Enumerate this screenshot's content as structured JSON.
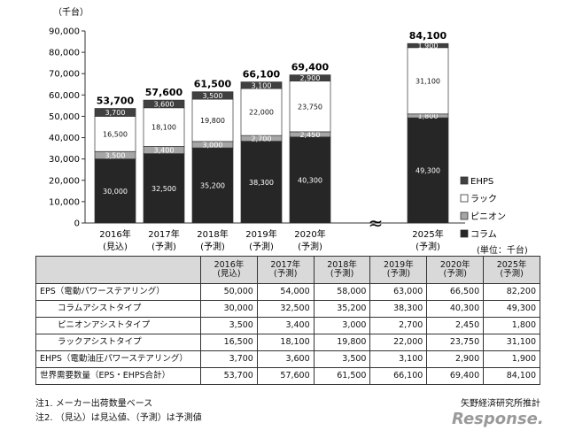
{
  "chart_data": {
    "type": "bar",
    "stacked": true,
    "ylabel": "（千台）",
    "ylim": [
      0,
      90000
    ],
    "yticks": [
      0,
      10000,
      20000,
      30000,
      40000,
      50000,
      60000,
      70000,
      80000,
      90000
    ],
    "ytick_labels": [
      "0",
      "10,000",
      "20,000",
      "30,000",
      "40,000",
      "50,000",
      "60,000",
      "70,000",
      "80,000",
      "90,000"
    ],
    "categories": [
      {
        "year": "2016年",
        "status": "(見込)"
      },
      {
        "year": "2017年",
        "status": "(予測)"
      },
      {
        "year": "2018年",
        "status": "(予測)"
      },
      {
        "year": "2019年",
        "status": "(予測)"
      },
      {
        "year": "2020年",
        "status": "(予測)"
      },
      {
        "year": "2025年",
        "status": "(予測)"
      }
    ],
    "totals": [
      53700,
      57600,
      61500,
      66100,
      69400,
      84100
    ],
    "total_labels": [
      "53,700",
      "57,600",
      "61,500",
      "66,100",
      "69,400",
      "84,100"
    ],
    "series": [
      {
        "name": "コラム",
        "color": "#262626",
        "values": [
          30000,
          32500,
          35200,
          38300,
          40300,
          49300
        ],
        "labels": [
          "30,000",
          "32,500",
          "35,200",
          "38,300",
          "40,300",
          "49,300"
        ],
        "label_color": "#ffffff"
      },
      {
        "name": "ピニオン",
        "color": "#a6a6a6",
        "values": [
          3500,
          3400,
          3000,
          2700,
          2450,
          1800
        ],
        "labels": [
          "3,500",
          "3,400",
          "3,000",
          "2,700",
          "2,450",
          "1,800"
        ],
        "label_color": "#ffffff"
      },
      {
        "name": "ラック",
        "color": "#ffffff",
        "values": [
          16500,
          18100,
          19800,
          22000,
          23750,
          31100
        ],
        "labels": [
          "16,500",
          "18,100",
          "19,800",
          "22,000",
          "23,750",
          "31,100"
        ],
        "label_color": "#111111"
      },
      {
        "name": "EHPS",
        "color": "#404040",
        "values": [
          3700,
          3600,
          3500,
          3100,
          2900,
          1900
        ],
        "labels": [
          "3,700",
          "3,600",
          "3,500",
          "3,100",
          "2,900",
          "1,900"
        ],
        "label_color": "#ffffff"
      }
    ],
    "legend_order": [
      "EHPS",
      "ラック",
      "ピニオン",
      "コラム"
    ],
    "legend_position": "right",
    "axis_break": "≈",
    "grid": false
  },
  "unit_note": "(単位：千台)",
  "table": {
    "headers": [
      {
        "line1": "",
        "line2": ""
      },
      {
        "line1": "2016年",
        "line2": "(見込)"
      },
      {
        "line1": "2017年",
        "line2": "(予測)"
      },
      {
        "line1": "2018年",
        "line2": "(予測)"
      },
      {
        "line1": "2019年",
        "line2": "(予測)"
      },
      {
        "line1": "2020年",
        "line2": "(予測)"
      },
      {
        "line1": "2025年",
        "line2": "(予測)"
      }
    ],
    "rows": [
      {
        "label": "EPS（電動パワーステアリング）",
        "indent": false,
        "values": [
          "50,000",
          "54,000",
          "58,000",
          "63,000",
          "66,500",
          "82,200"
        ]
      },
      {
        "label": "コラムアシストタイプ",
        "indent": true,
        "values": [
          "30,000",
          "32,500",
          "35,200",
          "38,300",
          "40,300",
          "49,300"
        ]
      },
      {
        "label": "ピニオンアシストタイプ",
        "indent": true,
        "values": [
          "3,500",
          "3,400",
          "3,000",
          "2,700",
          "2,450",
          "1,800"
        ]
      },
      {
        "label": "ラックアシストタイプ",
        "indent": true,
        "values": [
          "16,500",
          "18,100",
          "19,800",
          "22,000",
          "23,750",
          "31,100"
        ]
      },
      {
        "label": "EHPS（電動油圧パワーステアリング）",
        "indent": false,
        "values": [
          "3,700",
          "3,600",
          "3,500",
          "3,100",
          "2,900",
          "1,900"
        ]
      },
      {
        "label": "世界需要数量（EPS・EHPS合計）",
        "indent": false,
        "values": [
          "53,700",
          "57,600",
          "61,500",
          "66,100",
          "69,400",
          "84,100"
        ]
      }
    ]
  },
  "notes": [
    "注1. メーカー出荷数量ベース",
    "注2. （見込）は見込値、（予測）は予測値"
  ],
  "source": "矢野経済研究所推計",
  "watermark": "Response."
}
